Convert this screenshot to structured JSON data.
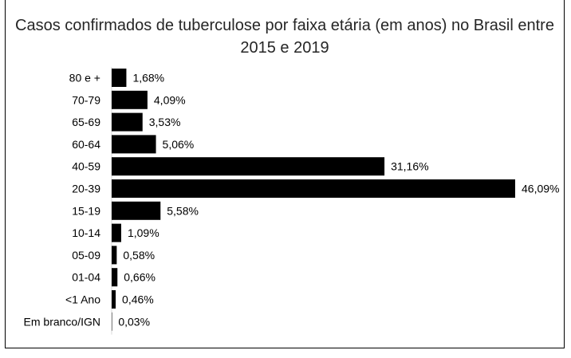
{
  "chart_data": {
    "type": "bar",
    "orientation": "horizontal",
    "title": "Casos confirmados de tuberculose por faixa etária (em anos) no Brasil entre 2015 e 2019",
    "categories": [
      "80 e +",
      "70-79",
      "65-69",
      "60-64",
      "40-59",
      "20-39",
      "15-19",
      "10-14",
      "05-09",
      "01-04",
      "<1 Ano",
      "Em branco/IGN"
    ],
    "values": [
      1.68,
      4.09,
      3.53,
      5.06,
      31.16,
      46.09,
      5.58,
      1.09,
      0.58,
      0.66,
      0.46,
      0.03
    ],
    "data_labels": [
      "1,68%",
      "4,09%",
      "3,53%",
      "5,06%",
      "31,16%",
      "46,09%",
      "5,58%",
      "1,09%",
      "0,58%",
      "0,66%",
      "0,46%",
      "0,03%"
    ],
    "bar_color": "#000000",
    "grid": false,
    "legend": "none"
  }
}
